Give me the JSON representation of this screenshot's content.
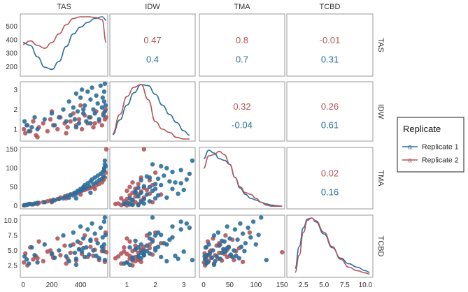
{
  "chart_data": {
    "type": "scatter-matrix",
    "variables": [
      "TAS",
      "IDW",
      "TMA",
      "TCBD"
    ],
    "colors": {
      "Replicate 1": "#2b6e9a",
      "Replicate 2": "#b4555a"
    },
    "legend": {
      "title": "Replicate",
      "placement": "right",
      "entries": [
        {
          "label": "Replicate 1",
          "glyph": "a",
          "color": "#2b6e9a"
        },
        {
          "label": "Replicate 2",
          "glyph": "a",
          "color": "#b4555a"
        }
      ]
    },
    "axes": {
      "TAS": {
        "range": [
          -20,
          590
        ],
        "ticks": [
          0,
          200,
          400
        ],
        "tick_labels": [
          "0",
          "200",
          "400"
        ]
      },
      "IDW": {
        "range": [
          0.4,
          3.4
        ],
        "ticks": [
          1,
          2,
          3
        ],
        "tick_labels": [
          "1",
          "2",
          "3"
        ]
      },
      "TMA": {
        "range": [
          -8,
          155
        ],
        "ticks": [
          0,
          50,
          100,
          150
        ],
        "tick_labels": [
          "0",
          "50",
          "100",
          "150"
        ]
      },
      "TCBD": {
        "range": [
          0.5,
          10.9
        ],
        "ticks": [
          2.5,
          5,
          7.5,
          10
        ],
        "tick_labels": [
          "2.5",
          "5.0",
          "7.5",
          "10.0"
        ]
      }
    },
    "diag_y_axis": {
      "variable": "TAS",
      "range": [
        130,
        590
      ],
      "ticks": [
        200,
        300,
        400,
        500
      ],
      "tick_labels": [
        "200",
        "300",
        "400",
        "500"
      ]
    },
    "correlations": [
      {
        "row": "TAS",
        "col": "IDW",
        "replicate_2": "0.47",
        "replicate_1": "0.4"
      },
      {
        "row": "TAS",
        "col": "TMA",
        "replicate_2": "0.8",
        "replicate_1": "0.7"
      },
      {
        "row": "TAS",
        "col": "TCBD",
        "replicate_2": "-0.01",
        "replicate_1": "0.31"
      },
      {
        "row": "IDW",
        "col": "TMA",
        "replicate_2": "0.32",
        "replicate_1": "-0.04"
      },
      {
        "row": "IDW",
        "col": "TCBD",
        "replicate_2": "0.26",
        "replicate_1": "0.61"
      },
      {
        "row": "TMA",
        "col": "TCBD",
        "replicate_2": "0.02",
        "replicate_1": "0.16"
      }
    ],
    "densities": {
      "TAS": {
        "x": [
          0,
          50,
          100,
          150,
          200,
          250,
          300,
          350,
          400,
          450,
          500,
          550,
          580
        ],
        "Replicate 1": [
          0.55,
          0.5,
          0.3,
          0.12,
          0.08,
          0.22,
          0.48,
          0.7,
          0.82,
          0.9,
          0.97,
          1.0,
          0.94
        ],
        "Replicate 2": [
          0.52,
          0.58,
          0.5,
          0.45,
          0.55,
          0.7,
          0.86,
          0.97,
          1.0,
          1.0,
          0.99,
          0.95,
          0.55
        ]
      },
      "IDW": {
        "x": [
          0.5,
          0.75,
          1.0,
          1.25,
          1.5,
          1.75,
          2.0,
          2.25,
          2.5,
          2.75,
          3.0,
          3.2
        ],
        "Replicate 1": [
          0.08,
          0.35,
          0.62,
          0.85,
          1.0,
          0.98,
          0.82,
          0.62,
          0.45,
          0.3,
          0.15,
          0.07
        ],
        "Replicate 2": [
          0.1,
          0.45,
          0.78,
          0.95,
          1.0,
          0.72,
          0.32,
          0.18,
          0.12,
          0.03,
          0.0,
          0.0
        ]
      },
      "TMA": {
        "x": [
          0,
          10,
          20,
          30,
          40,
          50,
          60,
          70,
          80,
          90,
          100,
          110,
          120,
          130,
          140,
          150
        ],
        "Replicate 1": [
          0.85,
          1.0,
          0.95,
          0.85,
          0.82,
          0.75,
          0.52,
          0.33,
          0.22,
          0.15,
          0.12,
          0.08,
          0.05,
          0.03,
          0.02,
          0.01
        ],
        "Replicate 2": [
          0.68,
          0.9,
          0.92,
          0.98,
          0.92,
          0.75,
          0.52,
          0.35,
          0.25,
          0.22,
          0.15,
          0.08,
          0.03,
          0.01,
          0.01,
          0.01
        ],
        "peak_scale": {
          "Replicate 1": 0.93,
          "Replicate 2": 0.93
        }
      },
      "TCBD": {
        "x": [
          1.5,
          2.0,
          2.5,
          3.0,
          3.5,
          4.0,
          5.0,
          6.0,
          7.0,
          8.0,
          9.0,
          10.0,
          10.5
        ],
        "Replicate 1": [
          0.12,
          0.5,
          0.83,
          0.98,
          1.0,
          0.93,
          0.72,
          0.48,
          0.3,
          0.2,
          0.14,
          0.08,
          0.05
        ],
        "Replicate 2": [
          0.05,
          0.35,
          0.75,
          0.96,
          1.0,
          0.95,
          0.75,
          0.5,
          0.28,
          0.14,
          0.08,
          0.04,
          0.02
        ]
      }
    },
    "scatter": {
      "Replicate 1": {
        "TAS": [
          10,
          25,
          40,
          60,
          80,
          100,
          150,
          200,
          220,
          250,
          280,
          300,
          320,
          330,
          350,
          360,
          370,
          380,
          390,
          400,
          410,
          420,
          430,
          440,
          450,
          460,
          470,
          480,
          490,
          500,
          510,
          520,
          530,
          540,
          550,
          555,
          560,
          565,
          565,
          570,
          570,
          575,
          370,
          420,
          470
        ],
        "IDW": [
          1.4,
          1.2,
          0.9,
          1.1,
          1.6,
          1.0,
          1.5,
          1.8,
          1.2,
          1.6,
          2.0,
          1.4,
          2.4,
          1.7,
          2.1,
          1.5,
          2.8,
          1.9,
          1.3,
          2.6,
          3.0,
          1.8,
          2.2,
          1.4,
          2.9,
          1.6,
          2.5,
          3.1,
          2.0,
          1.8,
          2.7,
          2.3,
          1.5,
          3.2,
          2.1,
          2.6,
          1.7,
          2.9,
          2.4,
          1.9,
          3.3,
          2.2,
          1.1,
          2.0,
          1.3
        ],
        "TMA": [
          2,
          3,
          5,
          4,
          6,
          8,
          10,
          12,
          15,
          18,
          20,
          25,
          22,
          30,
          28,
          35,
          32,
          40,
          38,
          45,
          42,
          50,
          55,
          48,
          60,
          52,
          65,
          70,
          58,
          75,
          62,
          80,
          68,
          85,
          72,
          90,
          78,
          95,
          100,
          110,
          120,
          105,
          20,
          45,
          35
        ],
        "TCBD": [
          4.0,
          3.5,
          2.8,
          5.5,
          4.2,
          3.0,
          6.0,
          4.5,
          3.8,
          5.0,
          7.5,
          4.0,
          3.2,
          5.8,
          8.0,
          4.6,
          3.6,
          6.5,
          5.2,
          9.0,
          4.8,
          7.0,
          3.9,
          5.5,
          8.5,
          4.3,
          6.8,
          9.5,
          5.0,
          7.8,
          4.1,
          6.2,
          3.7,
          8.8,
          5.6,
          7.2,
          4.9,
          9.8,
          6.0,
          10.5,
          3.4,
          7.6,
          2.6,
          5.4,
          6.6
        ]
      },
      "Replicate 2": {
        "TAS": [
          5,
          15,
          30,
          50,
          70,
          90,
          110,
          140,
          170,
          190,
          210,
          240,
          260,
          290,
          310,
          330,
          350,
          370,
          390,
          410,
          430,
          450,
          470,
          490,
          510,
          530,
          550,
          560,
          570,
          575,
          580,
          300,
          400,
          500,
          200,
          100
        ],
        "IDW": [
          1.0,
          0.8,
          1.2,
          0.9,
          1.4,
          0.7,
          1.1,
          1.3,
          0.9,
          1.5,
          1.2,
          1.0,
          1.6,
          1.3,
          1.1,
          1.4,
          1.8,
          1.2,
          1.5,
          1.0,
          1.7,
          1.3,
          1.6,
          1.1,
          1.9,
          1.4,
          1.2,
          1.8,
          1.5,
          2.0,
          1.6,
          0.8,
          2.2,
          1.3,
          1.9,
          0.6
        ],
        "TMA": [
          1,
          2,
          3,
          5,
          4,
          6,
          8,
          10,
          12,
          14,
          16,
          18,
          22,
          25,
          28,
          30,
          32,
          35,
          38,
          40,
          42,
          45,
          48,
          50,
          55,
          58,
          62,
          68,
          75,
          88,
          150,
          20,
          30,
          45,
          10,
          5
        ],
        "TCBD": [
          3.0,
          4.5,
          2.5,
          5.5,
          3.5,
          4.0,
          6.5,
          3.2,
          4.8,
          5.0,
          3.8,
          7.0,
          4.2,
          5.8,
          3.6,
          4.6,
          6.0,
          3.3,
          5.2,
          4.4,
          7.5,
          3.9,
          5.6,
          4.1,
          6.8,
          3.4,
          4.9,
          5.4,
          3.1,
          8.0,
          4.7,
          2.8,
          6.2,
          5.1,
          4.3,
          3.7
        ]
      }
    }
  }
}
